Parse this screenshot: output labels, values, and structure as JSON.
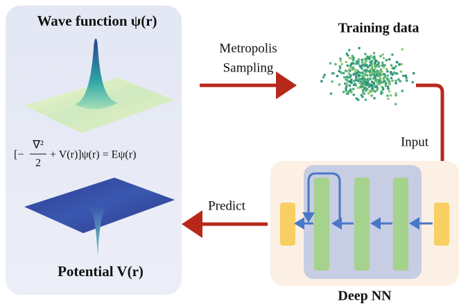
{
  "panels": {
    "schrodinger": {
      "wave_title": "Wave function ψ(r)",
      "equation": {
        "open": "[−",
        "numerator": "∇²",
        "denominator": "2",
        "rest": "+ V(r)]ψ(r) = Eψ(r)"
      },
      "potential_title": "Potential V(r)"
    },
    "sampling": {
      "label_lines": [
        "Metropolis",
        "Sampling"
      ]
    },
    "training": {
      "title": "Training data"
    },
    "input": {
      "label": "Input"
    },
    "network": {
      "title": "Deep NN"
    },
    "predict": {
      "label": "Predict"
    }
  }
}
